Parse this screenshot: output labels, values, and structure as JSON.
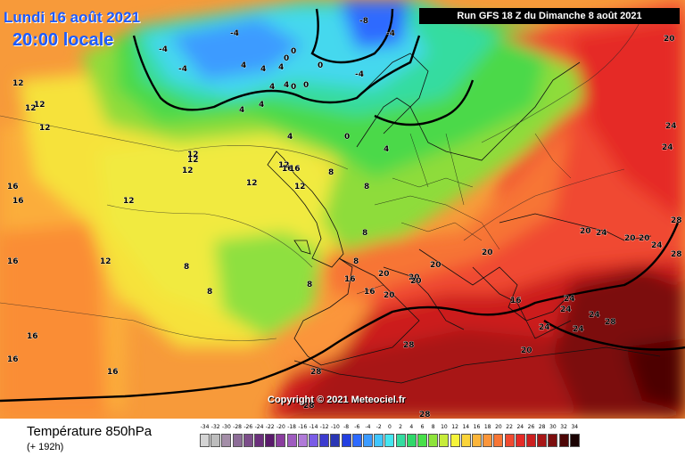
{
  "header": {
    "date": "Lundi 16 août 2021",
    "time": "20:00 locale",
    "run": "Run GFS 18 Z du Dimanche 8 août 2021"
  },
  "copyright": "Copyright © 2021 Meteociel.fr",
  "footer": {
    "title": "Température 850hPa",
    "subtitle": "(+ 192h)"
  },
  "legend": {
    "labels": [
      "-34",
      "-32",
      "-30",
      "-28",
      "-26",
      "-24",
      "-22",
      "-20",
      "-18",
      "-16",
      "-14",
      "-12",
      "-10",
      "-8",
      "-6",
      "-4",
      "-2",
      "0",
      "2",
      "4",
      "6",
      "8",
      "10",
      "12",
      "14",
      "16",
      "18",
      "20",
      "22",
      "24",
      "26",
      "28",
      "30",
      "32",
      "34"
    ],
    "colors": [
      "#d4d4d4",
      "#bdbdbd",
      "#a48ea8",
      "#8d6d98",
      "#7c4d8a",
      "#6b2f7c",
      "#5a1a6b",
      "#8a3d9e",
      "#9f5cc0",
      "#b07ad8",
      "#7a5ce6",
      "#3d3ccf",
      "#2a36b5",
      "#233fe0",
      "#2d6aff",
      "#3c9bff",
      "#40c6ff",
      "#45e6f0",
      "#34dca0",
      "#2fd86a",
      "#48e04a",
      "#8ee43b",
      "#c7ec3a",
      "#f6f43a",
      "#fbd43a",
      "#fcb53a",
      "#fb953a",
      "#f77535",
      "#f04a30",
      "#e52a26",
      "#cc1f1f",
      "#a81616",
      "#7c0e0e",
      "#4d0606",
      "#1a0202"
    ]
  },
  "isotherm_labels": [
    {
      "t": "-4"
    },
    {
      "t": "-4"
    },
    {
      "t": "-4"
    },
    {
      "t": "-8"
    },
    {
      "t": "-4"
    },
    {
      "t": "-4"
    },
    {
      "t": "0"
    },
    {
      "t": "0"
    },
    {
      "t": "0"
    },
    {
      "t": "0"
    },
    {
      "t": "0"
    },
    {
      "t": "0"
    },
    {
      "t": "4"
    },
    {
      "t": "4"
    },
    {
      "t": "4"
    },
    {
      "t": "4"
    },
    {
      "t": "4"
    },
    {
      "t": "4"
    },
    {
      "t": "4"
    },
    {
      "t": "4"
    },
    {
      "t": "4"
    },
    {
      "t": "8"
    },
    {
      "t": "8"
    },
    {
      "t": "8"
    },
    {
      "t": "8"
    },
    {
      "t": "8"
    },
    {
      "t": "8"
    },
    {
      "t": "8"
    },
    {
      "t": "12"
    },
    {
      "t": "12"
    },
    {
      "t": "12"
    },
    {
      "t": "12"
    },
    {
      "t": "12"
    },
    {
      "t": "12"
    },
    {
      "t": "12"
    },
    {
      "t": "12"
    },
    {
      "t": "12"
    },
    {
      "t": "12"
    },
    {
      "t": "12"
    },
    {
      "t": "12"
    },
    {
      "t": "16"
    },
    {
      "t": "16"
    },
    {
      "t": "16"
    },
    {
      "t": "16"
    },
    {
      "t": "16"
    },
    {
      "t": "16"
    },
    {
      "t": "16"
    },
    {
      "t": "16"
    },
    {
      "t": "16"
    },
    {
      "t": "16"
    },
    {
      "t": "16"
    },
    {
      "t": "20"
    },
    {
      "t": "20"
    },
    {
      "t": "20"
    },
    {
      "t": "20"
    },
    {
      "t": "20"
    },
    {
      "t": "20"
    },
    {
      "t": "20"
    },
    {
      "t": "20"
    },
    {
      "t": "20"
    },
    {
      "t": "20"
    },
    {
      "t": "20"
    },
    {
      "t": "24"
    },
    {
      "t": "24"
    },
    {
      "t": "24"
    },
    {
      "t": "24"
    },
    {
      "t": "24"
    },
    {
      "t": "24"
    },
    {
      "t": "24"
    },
    {
      "t": "24"
    },
    {
      "t": "24"
    },
    {
      "t": "28"
    },
    {
      "t": "28"
    },
    {
      "t": "28"
    },
    {
      "t": "28"
    },
    {
      "t": "28"
    },
    {
      "t": "28"
    },
    {
      "t": "28"
    }
  ]
}
